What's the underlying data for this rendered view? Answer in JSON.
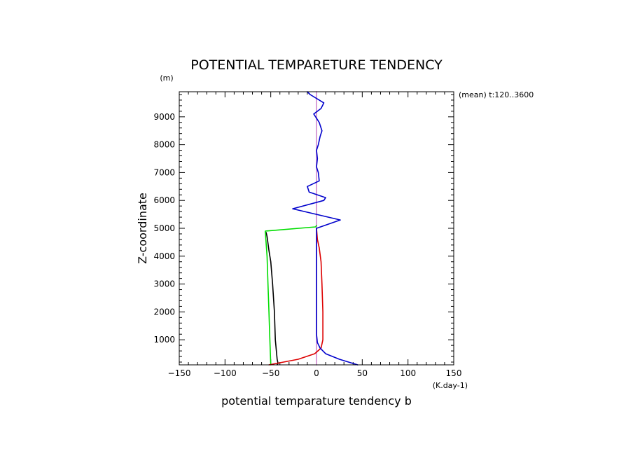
{
  "chart_data": {
    "type": "line",
    "title": "POTENTIAL TEMPARETURE TENDENCY",
    "xlabel": "potential temparature tendency b",
    "ylabel": "Z-coordinate",
    "x_unit": "(K.day-1)",
    "y_unit": "(m)",
    "annotation": "(mean) t:120..3600",
    "xlim": [
      -150,
      150
    ],
    "ylim": [
      100,
      9900
    ],
    "xticks": [
      -150,
      -100,
      -50,
      0,
      50,
      100,
      150
    ],
    "yticks": [
      1000,
      2000,
      3000,
      4000,
      5000,
      6000,
      7000,
      8000,
      9000
    ],
    "grid": false,
    "series": [
      {
        "color": "#000000",
        "points": [
          [
            -43,
            100
          ],
          [
            -42,
            150
          ],
          [
            -43,
            300
          ],
          [
            -45,
            1000
          ],
          [
            -46,
            2000
          ],
          [
            -48,
            3000
          ],
          [
            -50,
            3800
          ],
          [
            -52,
            4200
          ],
          [
            -54,
            4700
          ],
          [
            -55,
            4850
          ]
        ]
      },
      {
        "color": "#00dd00",
        "points": [
          [
            -50,
            100
          ],
          [
            -51,
            1000
          ],
          [
            -52,
            2000
          ],
          [
            -53,
            3000
          ],
          [
            -54,
            4000
          ],
          [
            -56,
            4900
          ],
          [
            -1,
            5050
          ],
          [
            0,
            5100
          ]
        ]
      },
      {
        "color": "#dd0000",
        "points": [
          [
            -52,
            100
          ],
          [
            -20,
            300
          ],
          [
            -2,
            500
          ],
          [
            5,
            700
          ],
          [
            7,
            1000
          ],
          [
            7,
            2000
          ],
          [
            6,
            3000
          ],
          [
            5,
            3800
          ],
          [
            3,
            4300
          ],
          [
            1,
            4600
          ],
          [
            0,
            5000
          ]
        ]
      },
      {
        "color": "#0000cc",
        "points": [
          [
            45,
            100
          ],
          [
            35,
            200
          ],
          [
            25,
            300
          ],
          [
            10,
            500
          ],
          [
            4,
            700
          ],
          [
            1,
            900
          ],
          [
            0,
            1200
          ],
          [
            0,
            2000
          ],
          [
            0,
            3000
          ],
          [
            0,
            4000
          ],
          [
            0,
            4800
          ],
          [
            0,
            5000
          ],
          [
            26,
            5300
          ],
          [
            -26,
            5700
          ],
          [
            8,
            6000
          ],
          [
            10,
            6100
          ],
          [
            -8,
            6300
          ],
          [
            -10,
            6500
          ],
          [
            3,
            6700
          ],
          [
            2,
            7000
          ],
          [
            0,
            7200
          ],
          [
            1,
            7500
          ],
          [
            0,
            7800
          ],
          [
            2,
            8000
          ],
          [
            4,
            8300
          ],
          [
            6,
            8500
          ],
          [
            5,
            8600
          ],
          [
            3,
            8800
          ],
          [
            -3,
            9100
          ],
          [
            5,
            9300
          ],
          [
            8,
            9500
          ],
          [
            -7,
            9800
          ],
          [
            -10,
            9900
          ]
        ]
      },
      {
        "color": "#d8a0d8",
        "points": [
          [
            0,
            100
          ],
          [
            0,
            9900
          ]
        ]
      }
    ]
  }
}
